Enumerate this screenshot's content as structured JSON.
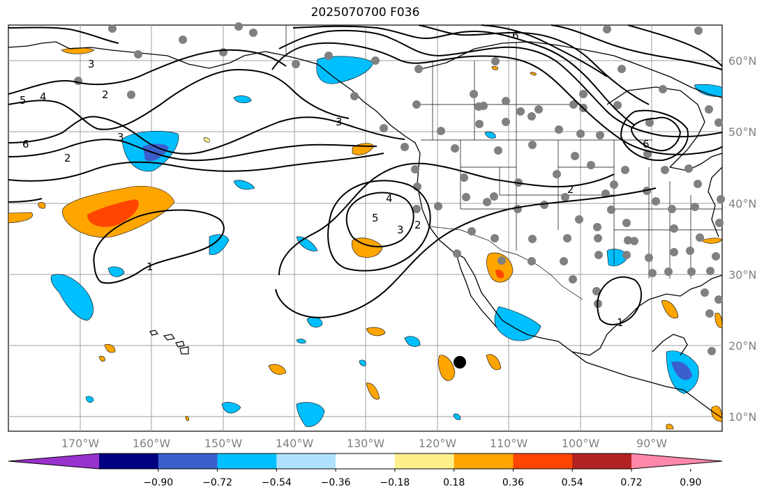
{
  "title": "2025070700 F036",
  "map": {
    "lon_labels": [
      "170°W",
      "160°W",
      "150°W",
      "140°W",
      "130°W",
      "120°W",
      "110°W",
      "100°W",
      "90°W"
    ],
    "lat_labels": [
      "60°N",
      "50°N",
      "40°N",
      "30°N",
      "20°N",
      "10°N"
    ],
    "contour_labels": [
      "1",
      "1",
      "2",
      "2",
      "2",
      "3",
      "3",
      "3",
      "4",
      "4",
      "5",
      "5",
      "6",
      "6",
      "6",
      "3",
      "2"
    ],
    "marker": "black-dot"
  },
  "colorbar": {
    "tick_labels": [
      "−0.90",
      "−0.72",
      "−0.54",
      "−0.36",
      "−0.18",
      "0.18",
      "0.36",
      "0.54",
      "0.72",
      "0.90"
    ],
    "colors": [
      "#9932cc",
      "#000080",
      "#3a5fcd",
      "#00bfff",
      "#b0e2ff",
      "#ffffff",
      "#fff08c",
      "#ffa500",
      "#ff4500",
      "#b22222",
      "#ff88aa"
    ],
    "extend": "both"
  }
}
